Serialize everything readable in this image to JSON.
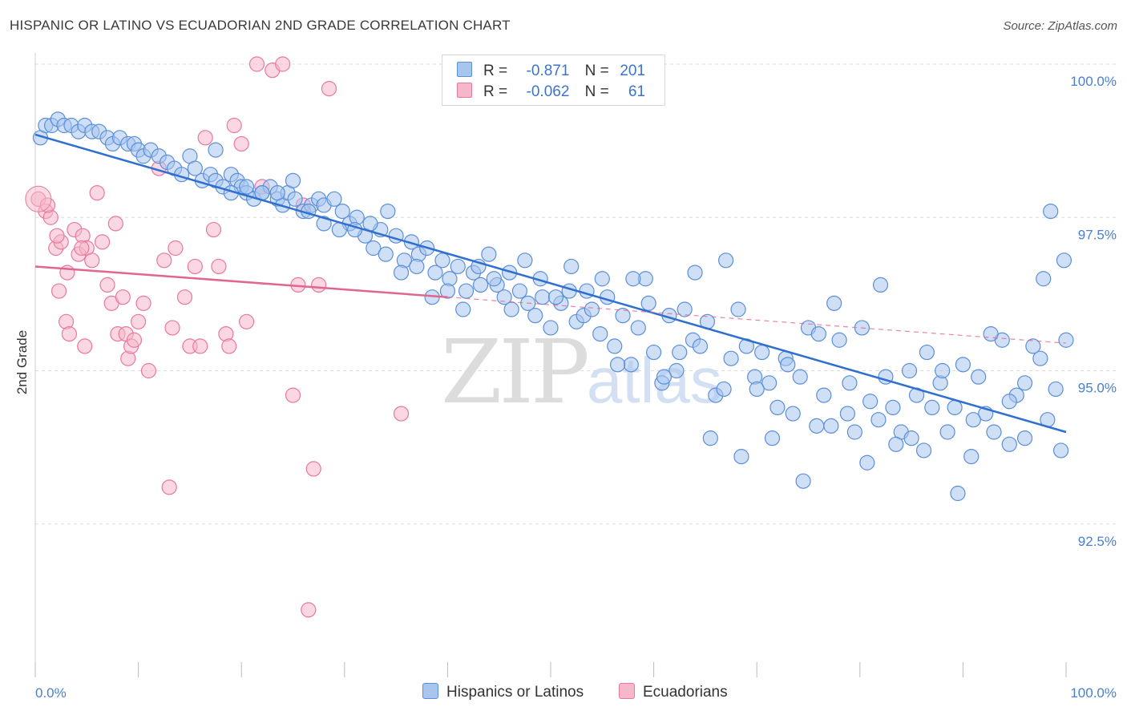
{
  "title": "HISPANIC OR LATINO VS ECUADORIAN 2ND GRADE CORRELATION CHART",
  "source": "Source: ZipAtlas.com",
  "watermark": {
    "zip": "ZIP",
    "atlas": "atlas"
  },
  "legend": {
    "rows": [
      {
        "r_label": "R =",
        "r_value": "-0.871",
        "n_label": "N =",
        "n_value": "201"
      },
      {
        "r_label": "R =",
        "r_value": "-0.062",
        "n_label": "N =",
        "n_value": "61"
      }
    ]
  },
  "bottom_legend": {
    "series1": "Hispanics or Latinos",
    "series2": "Ecuadorians"
  },
  "colors": {
    "blue": "#5b8fd8",
    "blue_fill": "#a8c5ee",
    "blue_line": "#2f6fd0",
    "pink": "#e8799c",
    "pink_fill": "#f5b7ca",
    "pink_line": "#e06690"
  },
  "chart_data": {
    "type": "scatter",
    "xlabel": "",
    "ylabel": "2nd Grade",
    "xlim": [
      0,
      100
    ],
    "ylim": [
      90.0,
      100.0
    ],
    "x_tick_labels": [
      "0.0%",
      "100.0%"
    ],
    "y_ticks": [
      92.5,
      95.0,
      97.5,
      100.0
    ],
    "y_tick_labels": [
      "92.5%",
      "95.0%",
      "97.5%",
      "100.0%"
    ],
    "series": [
      {
        "name": "Hispanics or Latinos",
        "trend": {
          "x": [
            0,
            100
          ],
          "y": [
            98.85,
            94.0
          ]
        },
        "points": [
          [
            0.5,
            98.8
          ],
          [
            1,
            99.0
          ],
          [
            1.6,
            99.0
          ],
          [
            2.2,
            99.1
          ],
          [
            2.8,
            99.0
          ],
          [
            3.5,
            99.0
          ],
          [
            4.2,
            98.9
          ],
          [
            4.8,
            99.0
          ],
          [
            5.5,
            98.9
          ],
          [
            6.2,
            98.9
          ],
          [
            7,
            98.8
          ],
          [
            7.5,
            98.7
          ],
          [
            8.2,
            98.8
          ],
          [
            9,
            98.7
          ],
          [
            9.6,
            98.7
          ],
          [
            10,
            98.6
          ],
          [
            10.5,
            98.5
          ],
          [
            11.2,
            98.6
          ],
          [
            12,
            98.5
          ],
          [
            12.8,
            98.4
          ],
          [
            13.5,
            98.3
          ],
          [
            14.2,
            98.2
          ],
          [
            15,
            98.5
          ],
          [
            15.5,
            98.3
          ],
          [
            16.2,
            98.1
          ],
          [
            17,
            98.2
          ],
          [
            17.5,
            98.1
          ],
          [
            18.2,
            98.0
          ],
          [
            19,
            98.2
          ],
          [
            19.6,
            98.1
          ],
          [
            20,
            98.0
          ],
          [
            20.5,
            97.9
          ],
          [
            21.2,
            97.8
          ],
          [
            22,
            97.9
          ],
          [
            22.8,
            98.0
          ],
          [
            23.5,
            97.8
          ],
          [
            24,
            97.7
          ],
          [
            24.5,
            97.9
          ],
          [
            25.2,
            97.8
          ],
          [
            26,
            97.6
          ],
          [
            26.8,
            97.7
          ],
          [
            27.5,
            97.8
          ],
          [
            28,
            97.7
          ],
          [
            29,
            97.8
          ],
          [
            29.8,
            97.6
          ],
          [
            30.5,
            97.4
          ],
          [
            31.2,
            97.5
          ],
          [
            32,
            97.2
          ],
          [
            32.8,
            97.0
          ],
          [
            33.5,
            97.3
          ],
          [
            34.2,
            97.6
          ],
          [
            35,
            97.2
          ],
          [
            35.8,
            96.8
          ],
          [
            36.5,
            97.1
          ],
          [
            37.2,
            96.9
          ],
          [
            38,
            97.0
          ],
          [
            38.8,
            96.6
          ],
          [
            39.5,
            96.8
          ],
          [
            40.2,
            96.5
          ],
          [
            41,
            96.7
          ],
          [
            41.8,
            96.3
          ],
          [
            42.5,
            96.6
          ],
          [
            43.2,
            96.4
          ],
          [
            44,
            96.9
          ],
          [
            44.8,
            96.4
          ],
          [
            45.5,
            96.2
          ],
          [
            46.2,
            96.0
          ],
          [
            47,
            96.3
          ],
          [
            47.8,
            96.1
          ],
          [
            48.5,
            95.9
          ],
          [
            49.2,
            96.2
          ],
          [
            50,
            95.7
          ],
          [
            51,
            96.1
          ],
          [
            51.8,
            96.3
          ],
          [
            52.5,
            95.8
          ],
          [
            53.2,
            95.9
          ],
          [
            54,
            96.0
          ],
          [
            54.8,
            95.6
          ],
          [
            55.5,
            96.2
          ],
          [
            56.2,
            95.4
          ],
          [
            57,
            95.9
          ],
          [
            57.8,
            95.1
          ],
          [
            58.5,
            95.7
          ],
          [
            59.2,
            96.5
          ],
          [
            60,
            95.3
          ],
          [
            60.8,
            94.8
          ],
          [
            61.5,
            95.9
          ],
          [
            62.2,
            95.0
          ],
          [
            63,
            96.0
          ],
          [
            63.8,
            95.5
          ],
          [
            64.5,
            95.4
          ],
          [
            65.2,
            95.8
          ],
          [
            66,
            94.6
          ],
          [
            66.8,
            94.7
          ],
          [
            67.5,
            95.2
          ],
          [
            68.2,
            96.0
          ],
          [
            69,
            95.4
          ],
          [
            69.8,
            94.9
          ],
          [
            70.5,
            95.3
          ],
          [
            71.2,
            94.8
          ],
          [
            72,
            94.4
          ],
          [
            72.8,
            95.2
          ],
          [
            73.5,
            94.3
          ],
          [
            74.2,
            94.9
          ],
          [
            75,
            95.7
          ],
          [
            75.8,
            94.1
          ],
          [
            76.5,
            94.6
          ],
          [
            77.2,
            94.1
          ],
          [
            78,
            95.5
          ],
          [
            78.8,
            94.3
          ],
          [
            79.5,
            94.0
          ],
          [
            80.2,
            95.7
          ],
          [
            81,
            94.5
          ],
          [
            81.8,
            94.2
          ],
          [
            82.5,
            94.9
          ],
          [
            83.2,
            94.4
          ],
          [
            84,
            94.0
          ],
          [
            84.8,
            95.0
          ],
          [
            85.5,
            94.6
          ],
          [
            86.2,
            93.7
          ],
          [
            87,
            94.4
          ],
          [
            87.8,
            94.8
          ],
          [
            88.5,
            94.0
          ],
          [
            89.2,
            94.4
          ],
          [
            90,
            95.1
          ],
          [
            90.8,
            93.6
          ],
          [
            91.5,
            94.9
          ],
          [
            92.2,
            94.3
          ],
          [
            93,
            94.0
          ],
          [
            93.8,
            95.5
          ],
          [
            94.5,
            93.8
          ],
          [
            95.2,
            94.6
          ],
          [
            96,
            93.9
          ],
          [
            96.8,
            95.4
          ],
          [
            97.5,
            95.2
          ],
          [
            98.2,
            94.2
          ],
          [
            99,
            94.7
          ],
          [
            99.5,
            93.7
          ],
          [
            100,
            95.5
          ],
          [
            99.8,
            96.8
          ],
          [
            98.5,
            97.6
          ],
          [
            97.8,
            96.5
          ],
          [
            96,
            94.8
          ],
          [
            94.5,
            94.5
          ],
          [
            92.7,
            95.6
          ],
          [
            91,
            94.2
          ],
          [
            89.5,
            93.0
          ],
          [
            88,
            95.0
          ],
          [
            86.5,
            95.3
          ],
          [
            85,
            93.9
          ],
          [
            83.5,
            93.8
          ],
          [
            82,
            96.4
          ],
          [
            80.7,
            93.5
          ],
          [
            79,
            94.8
          ],
          [
            77.5,
            96.1
          ],
          [
            76,
            95.6
          ],
          [
            74.5,
            93.2
          ],
          [
            73,
            95.1
          ],
          [
            71.5,
            93.9
          ],
          [
            70,
            94.7
          ],
          [
            68.5,
            93.6
          ],
          [
            67,
            96.8
          ],
          [
            65.5,
            93.9
          ],
          [
            64,
            96.6
          ],
          [
            62.5,
            95.3
          ],
          [
            61,
            94.9
          ],
          [
            59.5,
            96.1
          ],
          [
            58,
            96.5
          ],
          [
            56.5,
            95.1
          ],
          [
            55,
            96.5
          ],
          [
            53.5,
            96.3
          ],
          [
            52,
            96.7
          ],
          [
            50.5,
            96.2
          ],
          [
            49,
            96.5
          ],
          [
            47.5,
            96.8
          ],
          [
            46,
            96.6
          ],
          [
            44.5,
            96.5
          ],
          [
            43,
            96.7
          ],
          [
            41.5,
            96.0
          ],
          [
            40,
            96.3
          ],
          [
            38.5,
            96.2
          ],
          [
            37,
            96.7
          ],
          [
            35.5,
            96.6
          ],
          [
            34,
            96.9
          ],
          [
            32.5,
            97.4
          ],
          [
            31,
            97.3
          ],
          [
            29.5,
            97.3
          ],
          [
            28,
            97.4
          ],
          [
            26.5,
            97.6
          ],
          [
            25,
            98.1
          ],
          [
            23.5,
            97.9
          ],
          [
            22,
            97.9
          ],
          [
            20.5,
            98.0
          ],
          [
            19,
            97.9
          ],
          [
            17.5,
            98.6
          ]
        ]
      },
      {
        "name": "Ecuadorians",
        "trend": {
          "x": [
            0,
            40
          ],
          "y": [
            96.7,
            96.2
          ]
        },
        "trend_dashed": {
          "x": [
            40,
            100
          ],
          "y": [
            96.2,
            95.45
          ]
        },
        "points": [
          [
            0.3,
            97.8
          ],
          [
            1,
            97.6
          ],
          [
            1.5,
            97.5
          ],
          [
            2,
            97.0
          ],
          [
            2.5,
            97.1
          ],
          [
            2.3,
            96.3
          ],
          [
            3,
            95.8
          ],
          [
            3.3,
            95.6
          ],
          [
            3.8,
            97.3
          ],
          [
            4.2,
            96.9
          ],
          [
            4.6,
            97.2
          ],
          [
            5,
            97.0
          ],
          [
            4.8,
            95.4
          ],
          [
            5.5,
            96.8
          ],
          [
            6,
            97.9
          ],
          [
            6.5,
            97.1
          ],
          [
            7,
            96.4
          ],
          [
            7.4,
            96.1
          ],
          [
            7.8,
            97.4
          ],
          [
            8,
            95.6
          ],
          [
            8.5,
            96.2
          ],
          [
            8.8,
            95.6
          ],
          [
            9,
            95.2
          ],
          [
            9.3,
            95.4
          ],
          [
            9.6,
            95.5
          ],
          [
            10,
            95.8
          ],
          [
            10.5,
            96.1
          ],
          [
            11,
            95.0
          ],
          [
            12,
            98.3
          ],
          [
            12.5,
            96.8
          ],
          [
            13,
            93.1
          ],
          [
            13.3,
            95.7
          ],
          [
            13.6,
            97.0
          ],
          [
            14.5,
            96.2
          ],
          [
            15,
            95.4
          ],
          [
            15.5,
            96.7
          ],
          [
            16,
            95.4
          ],
          [
            16.5,
            98.8
          ],
          [
            17.3,
            97.3
          ],
          [
            17.8,
            96.7
          ],
          [
            18.5,
            95.6
          ],
          [
            18.8,
            95.4
          ],
          [
            19.3,
            99.0
          ],
          [
            20,
            98.7
          ],
          [
            20.5,
            95.8
          ],
          [
            21.5,
            100.0
          ],
          [
            22,
            98.0
          ],
          [
            23,
            99.9
          ],
          [
            24,
            100.0
          ],
          [
            25,
            94.6
          ],
          [
            25.5,
            96.4
          ],
          [
            26,
            97.7
          ],
          [
            26.5,
            91.1
          ],
          [
            27,
            93.4
          ],
          [
            27.5,
            96.4
          ],
          [
            28.5,
            99.6
          ],
          [
            35.5,
            94.3
          ],
          [
            1.2,
            97.7
          ],
          [
            2.1,
            97.2
          ],
          [
            3.1,
            96.6
          ],
          [
            4.5,
            97.0
          ]
        ]
      }
    ]
  }
}
